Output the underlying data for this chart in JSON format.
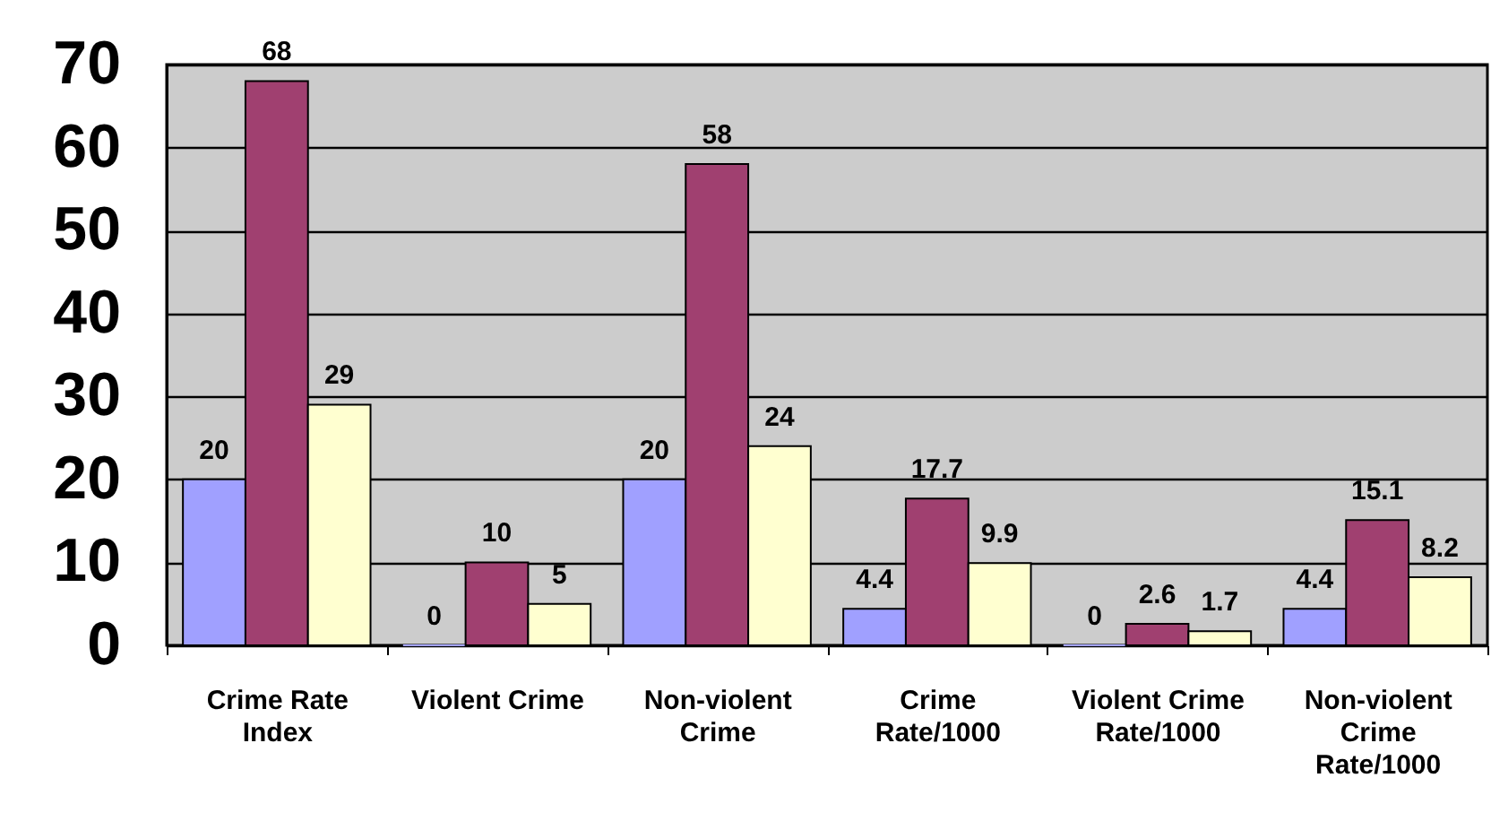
{
  "chart_data": {
    "type": "bar",
    "categories": [
      "Crime Rate Index",
      "Violent Crime",
      "Non-violent Crime",
      "Crime Rate/1000",
      "Violent Crime Rate/1000",
      "Non-violent Crime Rate/1000"
    ],
    "series": [
      {
        "color": "#a0a0ff",
        "values": [
          20,
          0,
          20,
          4.4,
          0,
          4.4
        ]
      },
      {
        "color": "#a04070",
        "values": [
          68,
          10,
          58,
          17.7,
          2.6,
          15.1
        ]
      },
      {
        "color": "#ffffd0",
        "values": [
          29,
          5,
          24,
          9.9,
          1.7,
          8.2
        ]
      }
    ],
    "ylim": [
      0,
      70
    ],
    "yticks": [
      0,
      10,
      20,
      30,
      40,
      50,
      60,
      70
    ],
    "grid": "y",
    "legend": false,
    "data_labels": true
  }
}
